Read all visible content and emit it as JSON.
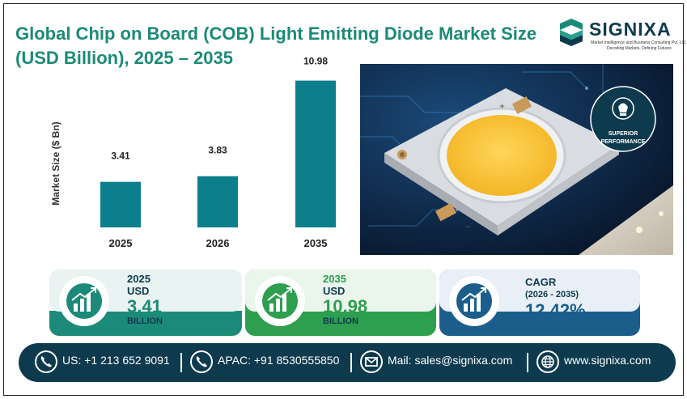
{
  "title": "Global Chip on Board (COB) Light Emitting Diode Market Size (USD Billion), 2025 – 2035",
  "logo": {
    "name": "SIGNIXA",
    "tagline1": "Market Intelligence and Business Consulting Pvt. Ltd.",
    "tagline2": "Decoding Markets, Defining Futures"
  },
  "chart_data": {
    "type": "bar",
    "categories": [
      "2025",
      "2026",
      "2035"
    ],
    "values": [
      3.41,
      3.83,
      10.98
    ],
    "data_labels": [
      "3.41",
      "3.83",
      "10.98"
    ],
    "ylabel": "Market Size ($ Bn)",
    "xlabel": "",
    "ylim": [
      0,
      11.5
    ],
    "grid": false,
    "bar_color": "#0d7f8c"
  },
  "badge": {
    "line1": "SUPERIOR",
    "line2": "PERFORMANCE"
  },
  "cards": [
    {
      "year": "2025",
      "unit": "USD",
      "value": "3.41",
      "suffix": "BILLION",
      "color": "#1c8a78"
    },
    {
      "year": "2035",
      "unit": "USD",
      "value": "10.98",
      "suffix": "BILLION",
      "color": "#2e9e4f"
    },
    {
      "label": "CAGR",
      "period": "(2026 - 2035)",
      "value": "12.42%",
      "color": "#1b5e8c"
    }
  ],
  "contact": {
    "us": "US: +1 213 652 9091",
    "apac": "APAC: +91 8530555850",
    "mail": "Mail: sales@signixa.com",
    "web": "www.signixa.com"
  },
  "colors": {
    "title": "#1c8a78",
    "navy": "#0e3a4e"
  }
}
